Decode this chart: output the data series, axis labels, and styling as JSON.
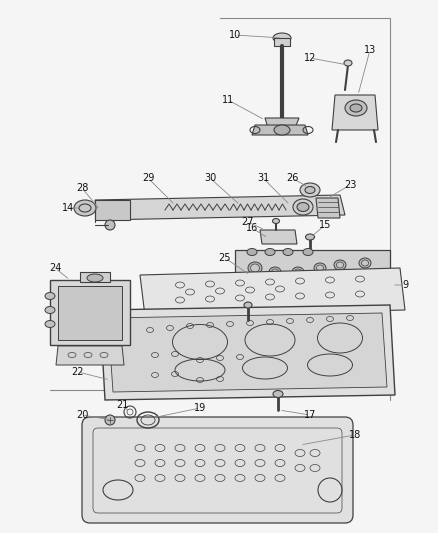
{
  "bg_color": "#f5f5f5",
  "line_color": "#404040",
  "fig_width": 4.39,
  "fig_height": 5.33,
  "dpi": 100
}
